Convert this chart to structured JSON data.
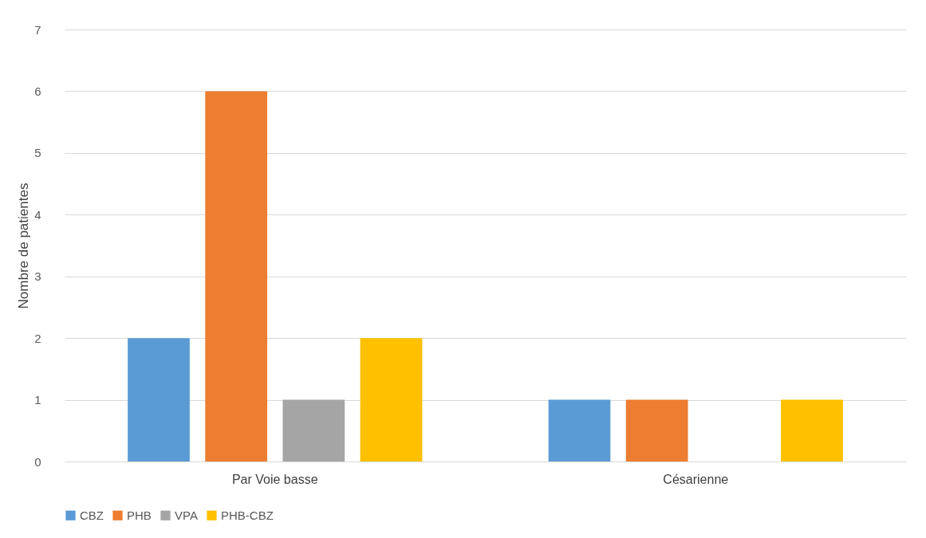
{
  "chart_data": {
    "type": "bar",
    "ylabel": "Nombre de patientes",
    "categories": [
      "Par Voie basse",
      "Césarienne"
    ],
    "series": [
      {
        "name": "CBZ",
        "color": "#5b9bd5",
        "values": [
          2,
          1
        ]
      },
      {
        "name": "PHB",
        "color": "#ed7d31",
        "values": [
          6,
          1
        ]
      },
      {
        "name": "VPA",
        "color": "#a5a5a5",
        "values": [
          1,
          0
        ]
      },
      {
        "name": "PHB-CBZ",
        "color": "#ffc000",
        "values": [
          2,
          1
        ]
      }
    ],
    "ylim": [
      0,
      7
    ],
    "yticks": [
      0,
      1,
      2,
      3,
      4,
      5,
      6,
      7
    ],
    "grid": "y",
    "legend": "bottom"
  }
}
